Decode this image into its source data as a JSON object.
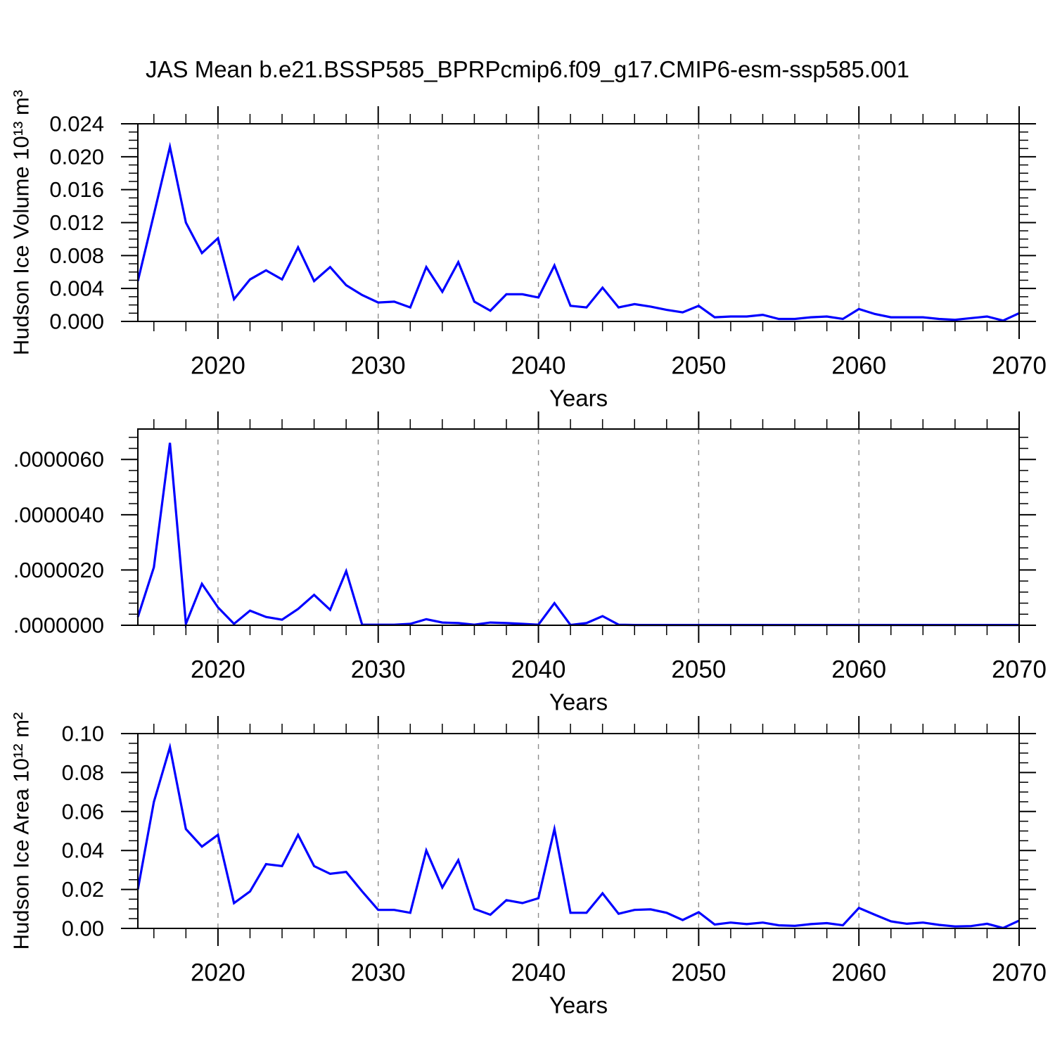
{
  "title": "JAS Mean b.e21.BSSP585_BPRPcmip6.f09_g17.CMIP6-esm-ssp585.001",
  "colors": {
    "line": "#0000ff",
    "axis": "#000000",
    "grid": "#8c8c8c",
    "background": "#ffffff"
  },
  "x_axis": {
    "label": "Years",
    "range": [
      2015,
      2070
    ],
    "ticks": [
      2020,
      2030,
      2040,
      2050,
      2060,
      2070
    ],
    "tick_labels": [
      "2020",
      "2030",
      "2040",
      "2050",
      "2060",
      "2070"
    ],
    "minor_step": 2,
    "gridline_years": [
      2020,
      2030,
      2040,
      2050,
      2060
    ],
    "years": [
      2015,
      2016,
      2017,
      2018,
      2019,
      2020,
      2021,
      2022,
      2023,
      2024,
      2025,
      2026,
      2027,
      2028,
      2029,
      2030,
      2031,
      2032,
      2033,
      2034,
      2035,
      2036,
      2037,
      2038,
      2039,
      2040,
      2041,
      2042,
      2043,
      2044,
      2045,
      2046,
      2047,
      2048,
      2049,
      2050,
      2051,
      2052,
      2053,
      2054,
      2055,
      2056,
      2057,
      2058,
      2059,
      2060,
      2061,
      2062,
      2063,
      2064,
      2065,
      2066,
      2067,
      2068,
      2069,
      2070
    ]
  },
  "chart_data": [
    {
      "type": "line",
      "name": "hudson-ice-volume",
      "ylabel": "Hudson Ice Volume 10¹³ m³",
      "xlabel": "Years",
      "ylim": [
        0,
        0.024
      ],
      "yticks": [
        0.0,
        0.004,
        0.008,
        0.012,
        0.016,
        0.02,
        0.024
      ],
      "ytick_labels": [
        "0.000",
        "0.004",
        "0.008",
        "0.012",
        "0.016",
        "0.020",
        "0.024"
      ],
      "y_minor_step": 0.001,
      "grid": true,
      "legend": "none",
      "values": [
        0.0049,
        0.013,
        0.0212,
        0.012,
        0.0083,
        0.0101,
        0.0027,
        0.0051,
        0.0062,
        0.0051,
        0.009,
        0.0049,
        0.0066,
        0.0044,
        0.0032,
        0.0023,
        0.0024,
        0.0017,
        0.0066,
        0.0036,
        0.0072,
        0.0024,
        0.0013,
        0.0033,
        0.0033,
        0.0029,
        0.0068,
        0.0019,
        0.0017,
        0.0041,
        0.0017,
        0.0021,
        0.0018,
        0.0014,
        0.0011,
        0.0019,
        0.0005,
        0.0006,
        0.0006,
        0.0008,
        0.0003,
        0.0003,
        0.0005,
        0.0006,
        0.0003,
        0.0015,
        0.0009,
        0.0005,
        0.0005,
        0.0005,
        0.0003,
        0.0002,
        0.0004,
        0.0006,
        0.0001,
        0.001
      ]
    },
    {
      "type": "line",
      "name": "hudson-snow-volume",
      "ylabel": "",
      "xlabel": "Years",
      "ylim": [
        0,
        7.1e-06
      ],
      "yticks": [
        0.0,
        2e-06,
        4e-06,
        6e-06
      ],
      "ytick_labels": [
        ".0000000",
        ".0000020",
        ".0000040",
        ".0000060"
      ],
      "y_minor_step": 4e-07,
      "grid": true,
      "legend": "none",
      "values": [
        3e-07,
        2.1e-06,
        6.6e-06,
        5e-08,
        1.5e-06,
        6.5e-07,
        5e-08,
        5.3e-07,
        3e-07,
        2e-07,
        5.9e-07,
        1.1e-06,
        5.6e-07,
        1.96e-06,
        2e-08,
        2e-08,
        2e-08,
        5e-08,
        2.2e-07,
        1e-07,
        8e-08,
        2e-08,
        1e-07,
        8e-08,
        5e-08,
        2e-08,
        8e-07,
        1e-08,
        8e-08,
        3.3e-07,
        2e-08,
        1e-08,
        1e-08,
        1e-08,
        1e-08,
        1e-08,
        1e-08,
        1e-08,
        1e-08,
        1e-08,
        1e-08,
        1e-08,
        1e-08,
        1e-08,
        1e-08,
        1e-08,
        1e-08,
        1e-08,
        1e-08,
        1e-08,
        1e-08,
        1e-08,
        1e-08,
        1e-08,
        1e-08,
        1e-08
      ]
    },
    {
      "type": "line",
      "name": "hudson-ice-area",
      "ylabel": "Hudson Ice Area 10¹² m²",
      "xlabel": "Years",
      "ylim": [
        0,
        0.1
      ],
      "yticks": [
        0.0,
        0.02,
        0.04,
        0.06,
        0.08,
        0.1
      ],
      "ytick_labels": [
        "0.00",
        "0.02",
        "0.04",
        "0.06",
        "0.08",
        "0.10"
      ],
      "y_minor_step": 0.005,
      "grid": true,
      "legend": "none",
      "values": [
        0.02,
        0.065,
        0.093,
        0.051,
        0.042,
        0.048,
        0.013,
        0.019,
        0.033,
        0.032,
        0.048,
        0.032,
        0.028,
        0.029,
        0.019,
        0.0095,
        0.0095,
        0.008,
        0.04,
        0.021,
        0.035,
        0.01,
        0.007,
        0.0145,
        0.013,
        0.0155,
        0.051,
        0.008,
        0.008,
        0.018,
        0.0075,
        0.0095,
        0.0098,
        0.008,
        0.0043,
        0.0083,
        0.002,
        0.003,
        0.0022,
        0.003,
        0.0016,
        0.0013,
        0.0022,
        0.0027,
        0.0016,
        0.0105,
        0.007,
        0.0036,
        0.0024,
        0.003,
        0.0018,
        0.001,
        0.0012,
        0.0024,
        0.0002,
        0.004
      ]
    }
  ]
}
